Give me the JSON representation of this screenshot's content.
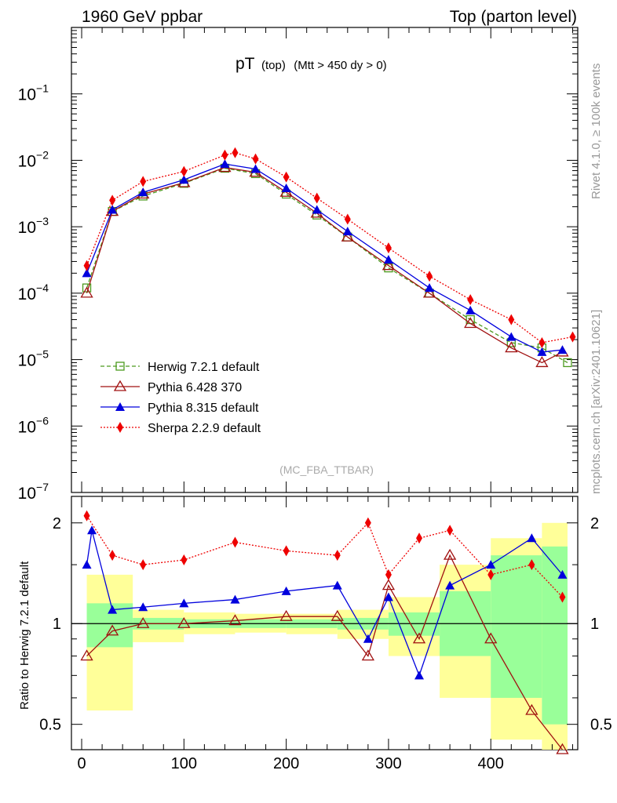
{
  "header": {
    "left": "1960 GeV ppbar",
    "right": "Top (parton level)",
    "side_top": "Rivet 4.1.0, ≥ 100k events",
    "side_bottom": "mcplots.cern.ch [arXiv:2401.10621]"
  },
  "colors": {
    "herwig": "#4c9a1e",
    "pythia6": "#a01010",
    "pythia8": "#0000dd",
    "sherpa": "#ee0000",
    "band_yellow": "#ffff99",
    "band_green": "#99ff99"
  },
  "chart_data": [
    {
      "type": "line",
      "title_main": "pT",
      "title_sub1": "(top)",
      "title_sub2": "(Mtt > 450 dy > 0)",
      "watermark": "(MC_FBA_TTBAR)",
      "yscale": "log",
      "xlim": [
        -10,
        485
      ],
      "ylim": [
        1e-07,
        1
      ],
      "ytick_labels": [
        {
          "base": "10",
          "exp": "−1",
          "value": 0.1
        },
        {
          "base": "10",
          "exp": "−2",
          "value": 0.01
        },
        {
          "base": "10",
          "exp": "−3",
          "value": 0.001
        },
        {
          "base": "10",
          "exp": "−4",
          "value": 0.0001
        },
        {
          "base": "10",
          "exp": "−5",
          "value": 1e-05
        },
        {
          "base": "10",
          "exp": "−6",
          "value": 1e-06
        },
        {
          "base": "10",
          "exp": "−7",
          "value": 1e-07
        }
      ],
      "legend": [
        {
          "key": "herwig",
          "label": "Herwig 7.2.1 default"
        },
        {
          "key": "pythia6",
          "label": "Pythia 6.428 370"
        },
        {
          "key": "pythia8",
          "label": "Pythia 8.315 default"
        },
        {
          "key": "sherpa",
          "label": "Sherpa 2.2.9 default"
        }
      ],
      "series": [
        {
          "key": "herwig",
          "name": "Herwig 7.2.1 default",
          "x": [
            5,
            30,
            60,
            100,
            140,
            170,
            200,
            230,
            260,
            300,
            340,
            380,
            420,
            450,
            475
          ],
          "y": [
            0.00012,
            0.0017,
            0.0029,
            0.0045,
            0.0076,
            0.0063,
            0.0031,
            0.0015,
            0.0007,
            0.00024,
            0.0001,
            4e-05,
            1.8e-05,
            1.5e-05,
            9e-06
          ]
        },
        {
          "key": "pythia6",
          "name": "Pythia 6.428 370",
          "x": [
            5,
            30,
            60,
            100,
            140,
            170,
            200,
            230,
            260,
            300,
            340,
            380,
            420,
            450,
            470
          ],
          "y": [
            0.0001,
            0.0017,
            0.0031,
            0.0046,
            0.0078,
            0.0066,
            0.0033,
            0.0016,
            0.0007,
            0.00026,
            0.0001,
            3.5e-05,
            1.5e-05,
            9e-06,
            1.3e-05
          ]
        },
        {
          "key": "pythia8",
          "name": "Pythia 8.315 default",
          "x": [
            5,
            30,
            60,
            100,
            140,
            170,
            200,
            230,
            260,
            300,
            340,
            380,
            420,
            450,
            470
          ],
          "y": [
            0.0002,
            0.0018,
            0.0033,
            0.0051,
            0.0088,
            0.0074,
            0.0038,
            0.0018,
            0.00085,
            0.00032,
            0.00012,
            5.5e-05,
            2.2e-05,
            1.3e-05,
            1.4e-05
          ]
        },
        {
          "key": "sherpa",
          "name": "Sherpa 2.2.9 default",
          "x": [
            5,
            30,
            60,
            100,
            140,
            150,
            170,
            200,
            230,
            260,
            300,
            340,
            380,
            420,
            450,
            480
          ],
          "y": [
            0.00026,
            0.0025,
            0.0048,
            0.0068,
            0.012,
            0.013,
            0.0105,
            0.0056,
            0.0027,
            0.0013,
            0.00048,
            0.00018,
            8e-05,
            4e-05,
            1.8e-05,
            2.2e-05
          ]
        }
      ]
    },
    {
      "type": "line",
      "ylabel": "Ratio to Herwig 7.2.1 default",
      "yscale": "log",
      "ylim": [
        0.42,
        2.4
      ],
      "xlim": [
        -10,
        485
      ],
      "xtick_labels": [
        "0",
        "100",
        "200",
        "300",
        "400"
      ],
      "xticks": [
        0,
        100,
        200,
        300,
        400
      ],
      "ytick_labels": [
        "0.5",
        "1",
        "2"
      ],
      "yticks": [
        0.5,
        1,
        2
      ],
      "reference": 1,
      "series": [
        {
          "key": "pythia6",
          "name": "Pythia 6.428 370",
          "x": [
            5,
            30,
            60,
            100,
            150,
            200,
            250,
            280,
            300,
            330,
            360,
            400,
            440,
            470
          ],
          "y": [
            0.8,
            0.95,
            1.0,
            1.0,
            1.02,
            1.05,
            1.05,
            0.8,
            1.3,
            0.9,
            1.6,
            0.9,
            0.55,
            0.4
          ]
        },
        {
          "key": "pythia8",
          "name": "Pythia 8.315 default",
          "x": [
            5,
            10,
            30,
            60,
            100,
            150,
            200,
            250,
            280,
            300,
            330,
            360,
            400,
            440,
            470
          ],
          "y": [
            1.5,
            1.9,
            1.1,
            1.12,
            1.15,
            1.18,
            1.25,
            1.3,
            0.9,
            1.2,
            0.7,
            1.3,
            1.5,
            1.8,
            1.4
          ]
        },
        {
          "key": "sherpa",
          "name": "Sherpa 2.2.9 default",
          "x": [
            5,
            30,
            60,
            100,
            150,
            200,
            250,
            280,
            300,
            330,
            360,
            400,
            440,
            470
          ],
          "y": [
            2.1,
            1.6,
            1.5,
            1.55,
            1.75,
            1.65,
            1.6,
            2.0,
            1.4,
            1.8,
            1.9,
            1.4,
            1.5,
            1.2
          ]
        }
      ],
      "bands": {
        "x": [
          5,
          50,
          100,
          150,
          200,
          250,
          300,
          350,
          400,
          450,
          475
        ],
        "yellow_hi": [
          1.4,
          1.1,
          1.08,
          1.07,
          1.07,
          1.1,
          1.2,
          1.5,
          1.8,
          2.0,
          2.0
        ],
        "yellow_lo": [
          0.55,
          0.88,
          0.93,
          0.94,
          0.93,
          0.9,
          0.8,
          0.6,
          0.45,
          0.42,
          0.42
        ],
        "green_hi": [
          1.15,
          1.04,
          1.03,
          1.03,
          1.03,
          1.04,
          1.08,
          1.25,
          1.6,
          1.7,
          1.7
        ],
        "green_lo": [
          0.85,
          0.96,
          0.97,
          0.97,
          0.97,
          0.96,
          0.92,
          0.8,
          0.6,
          0.5,
          0.5
        ]
      }
    }
  ]
}
